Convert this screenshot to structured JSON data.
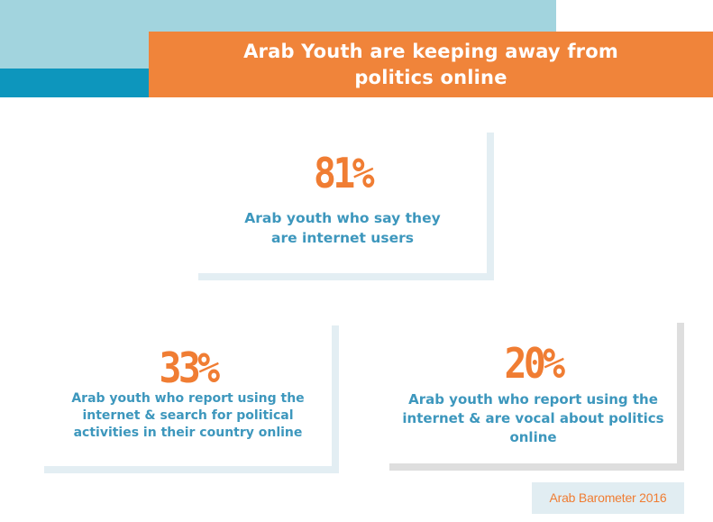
{
  "title": "Arab Youth are keeping away from politics online",
  "stats": [
    {
      "value": "81%",
      "description": "Arab youth who say they are internet users"
    },
    {
      "value": "33%",
      "description": "Arab youth who report using the internet & search for political activities in their country online"
    },
    {
      "value": "20%",
      "description": "Arab youth who report using the internet & are vocal about politics online"
    }
  ],
  "source": "Arab Barometer 2016",
  "colors": {
    "orange": "#f0843a",
    "blue_text": "#3d97bd",
    "light_blue": "#a2d4de",
    "dark_blue": "#0d96bd",
    "card_shadow_blue": "#e3eef3",
    "card_shadow_grey": "#dedede"
  }
}
